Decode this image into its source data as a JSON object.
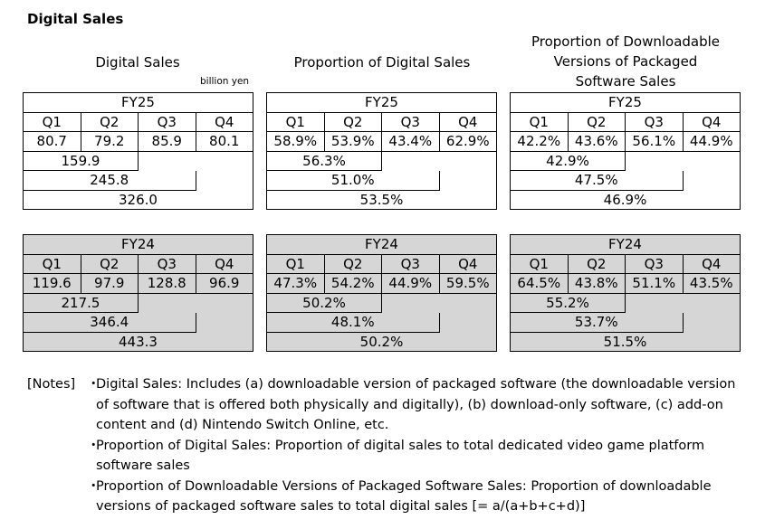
{
  "title": "Digital Sales",
  "headers": {
    "col1": "Digital Sales",
    "col2": "Proportion of Digital Sales",
    "col3": "Proportion of Downloadable Versions of Packaged Software Sales"
  },
  "unit": "billion yen",
  "tables": {
    "fy25": [
      {
        "year": "FY25",
        "quarters": [
          "Q1",
          "Q2",
          "Q3",
          "Q4"
        ],
        "values": [
          "80.7",
          "79.2",
          "85.9",
          "80.1"
        ],
        "h1": "159.9",
        "q3cum": "245.8",
        "full": "326.0"
      },
      {
        "year": "FY25",
        "quarters": [
          "Q1",
          "Q2",
          "Q3",
          "Q4"
        ],
        "values": [
          "58.9%",
          "53.9%",
          "43.4%",
          "62.9%"
        ],
        "h1": "56.3%",
        "q3cum": "51.0%",
        "full": "53.5%"
      },
      {
        "year": "FY25",
        "quarters": [
          "Q1",
          "Q2",
          "Q3",
          "Q4"
        ],
        "values": [
          "42.2%",
          "43.6%",
          "56.1%",
          "44.9%"
        ],
        "h1": "42.9%",
        "q3cum": "47.5%",
        "full": "46.9%"
      }
    ],
    "fy24": [
      {
        "year": "FY24",
        "quarters": [
          "Q1",
          "Q2",
          "Q3",
          "Q4"
        ],
        "values": [
          "119.6",
          "97.9",
          "128.8",
          "96.9"
        ],
        "h1": "217.5",
        "q3cum": "346.4",
        "full": "443.3"
      },
      {
        "year": "FY24",
        "quarters": [
          "Q1",
          "Q2",
          "Q3",
          "Q4"
        ],
        "values": [
          "47.3%",
          "54.2%",
          "44.9%",
          "59.5%"
        ],
        "h1": "50.2%",
        "q3cum": "48.1%",
        "full": "50.2%"
      },
      {
        "year": "FY24",
        "quarters": [
          "Q1",
          "Q2",
          "Q3",
          "Q4"
        ],
        "values": [
          "64.5%",
          "43.8%",
          "51.1%",
          "43.5%"
        ],
        "h1": "55.2%",
        "q3cum": "53.7%",
        "full": "51.5%"
      }
    ]
  },
  "notes": {
    "label": "[Notes]",
    "bullet": "・",
    "items": [
      "Digital Sales: Includes (a) downloadable version of packaged software (the downloadable version of software that is offered both physically and digitally), (b) download-only software, (c) add-on content and (d) Nintendo Switch Online, etc.",
      "Proportion of Digital Sales: Proportion of digital sales to total dedicated video game platform software sales",
      "Proportion of Downloadable Versions of Packaged Software Sales: Proportion of downloadable versions of packaged software sales to total digital sales [= a/(a+b+c+d)]"
    ]
  }
}
